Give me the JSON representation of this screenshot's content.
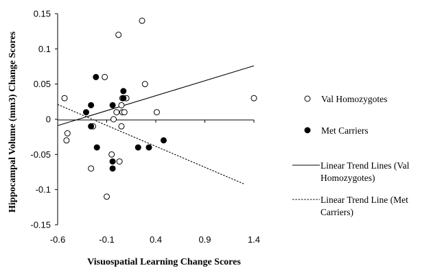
{
  "chart_data": {
    "type": "scatter",
    "xlabel": "Visuospatial Learning Change Scores",
    "ylabel": "Hippocampal Volume (mm3) Change Scores",
    "xlim": [
      -0.6,
      1.4
    ],
    "ylim": [
      -0.15,
      0.15
    ],
    "xticks": [
      "-0.6",
      "-0.1",
      "0.4",
      "0.9",
      "1.4"
    ],
    "yticks": [
      "0.15",
      "0.1",
      "0.05",
      "0",
      "-0.05",
      "-0.1",
      "-0.15"
    ],
    "grid": false,
    "legend_position": "right",
    "series": [
      {
        "name": "Val Homozygotes",
        "marker": "open-circle",
        "points": [
          [
            -0.53,
            0.03
          ],
          [
            -0.5,
            -0.02
          ],
          [
            -0.51,
            -0.03
          ],
          [
            -0.24,
            -0.01
          ],
          [
            -0.26,
            -0.07
          ],
          [
            -0.12,
            0.06
          ],
          [
            -0.1,
            -0.11
          ],
          [
            -0.05,
            -0.05
          ],
          [
            -0.03,
            0.0
          ],
          [
            0.0,
            0.01
          ],
          [
            0.06,
            0.03
          ],
          [
            0.05,
            0.02
          ],
          [
            0.06,
            0.01
          ],
          [
            0.08,
            0.01
          ],
          [
            0.1,
            0.03
          ],
          [
            0.05,
            -0.01
          ],
          [
            0.02,
            0.12
          ],
          [
            0.26,
            0.14
          ],
          [
            0.29,
            0.05
          ],
          [
            0.41,
            0.01
          ],
          [
            0.03,
            -0.06
          ],
          [
            1.4,
            0.03
          ]
        ]
      },
      {
        "name": "Met Carriers",
        "marker": "filled-circle",
        "points": [
          [
            -0.31,
            0.01
          ],
          [
            -0.26,
            0.02
          ],
          [
            -0.26,
            -0.01
          ],
          [
            -0.21,
            0.06
          ],
          [
            -0.2,
            -0.04
          ],
          [
            -0.04,
            0.02
          ],
          [
            -0.04,
            -0.06
          ],
          [
            -0.04,
            -0.07
          ],
          [
            0.07,
            0.04
          ],
          [
            0.07,
            0.03
          ],
          [
            0.22,
            -0.04
          ],
          [
            0.33,
            -0.04
          ],
          [
            0.48,
            -0.03
          ]
        ]
      }
    ],
    "trend_lines": [
      {
        "name": "Linear Trend Lines (Val Homozygotes)",
        "style": "solid",
        "x": [
          -0.6,
          1.4
        ],
        "y": [
          -0.009,
          0.076
        ]
      },
      {
        "name": "Linear Trend Line (Met Carriers)",
        "style": "dashed",
        "x": [
          -0.6,
          1.3
        ],
        "y": [
          0.021,
          -0.092
        ]
      }
    ],
    "legend": [
      {
        "series": 0,
        "lines": [
          "Val Homozygotes"
        ]
      },
      {
        "series": 1,
        "lines": [
          "Met Carriers"
        ]
      },
      {
        "trend": 0,
        "lines": [
          "Linear Trend Lines (Val",
          "Homozygotes)"
        ]
      },
      {
        "trend": 1,
        "lines": [
          "Linear Trend Line (Met",
          "Carriers)"
        ]
      }
    ],
    "colors": {
      "marker": "#000000",
      "line": "#000000"
    }
  }
}
